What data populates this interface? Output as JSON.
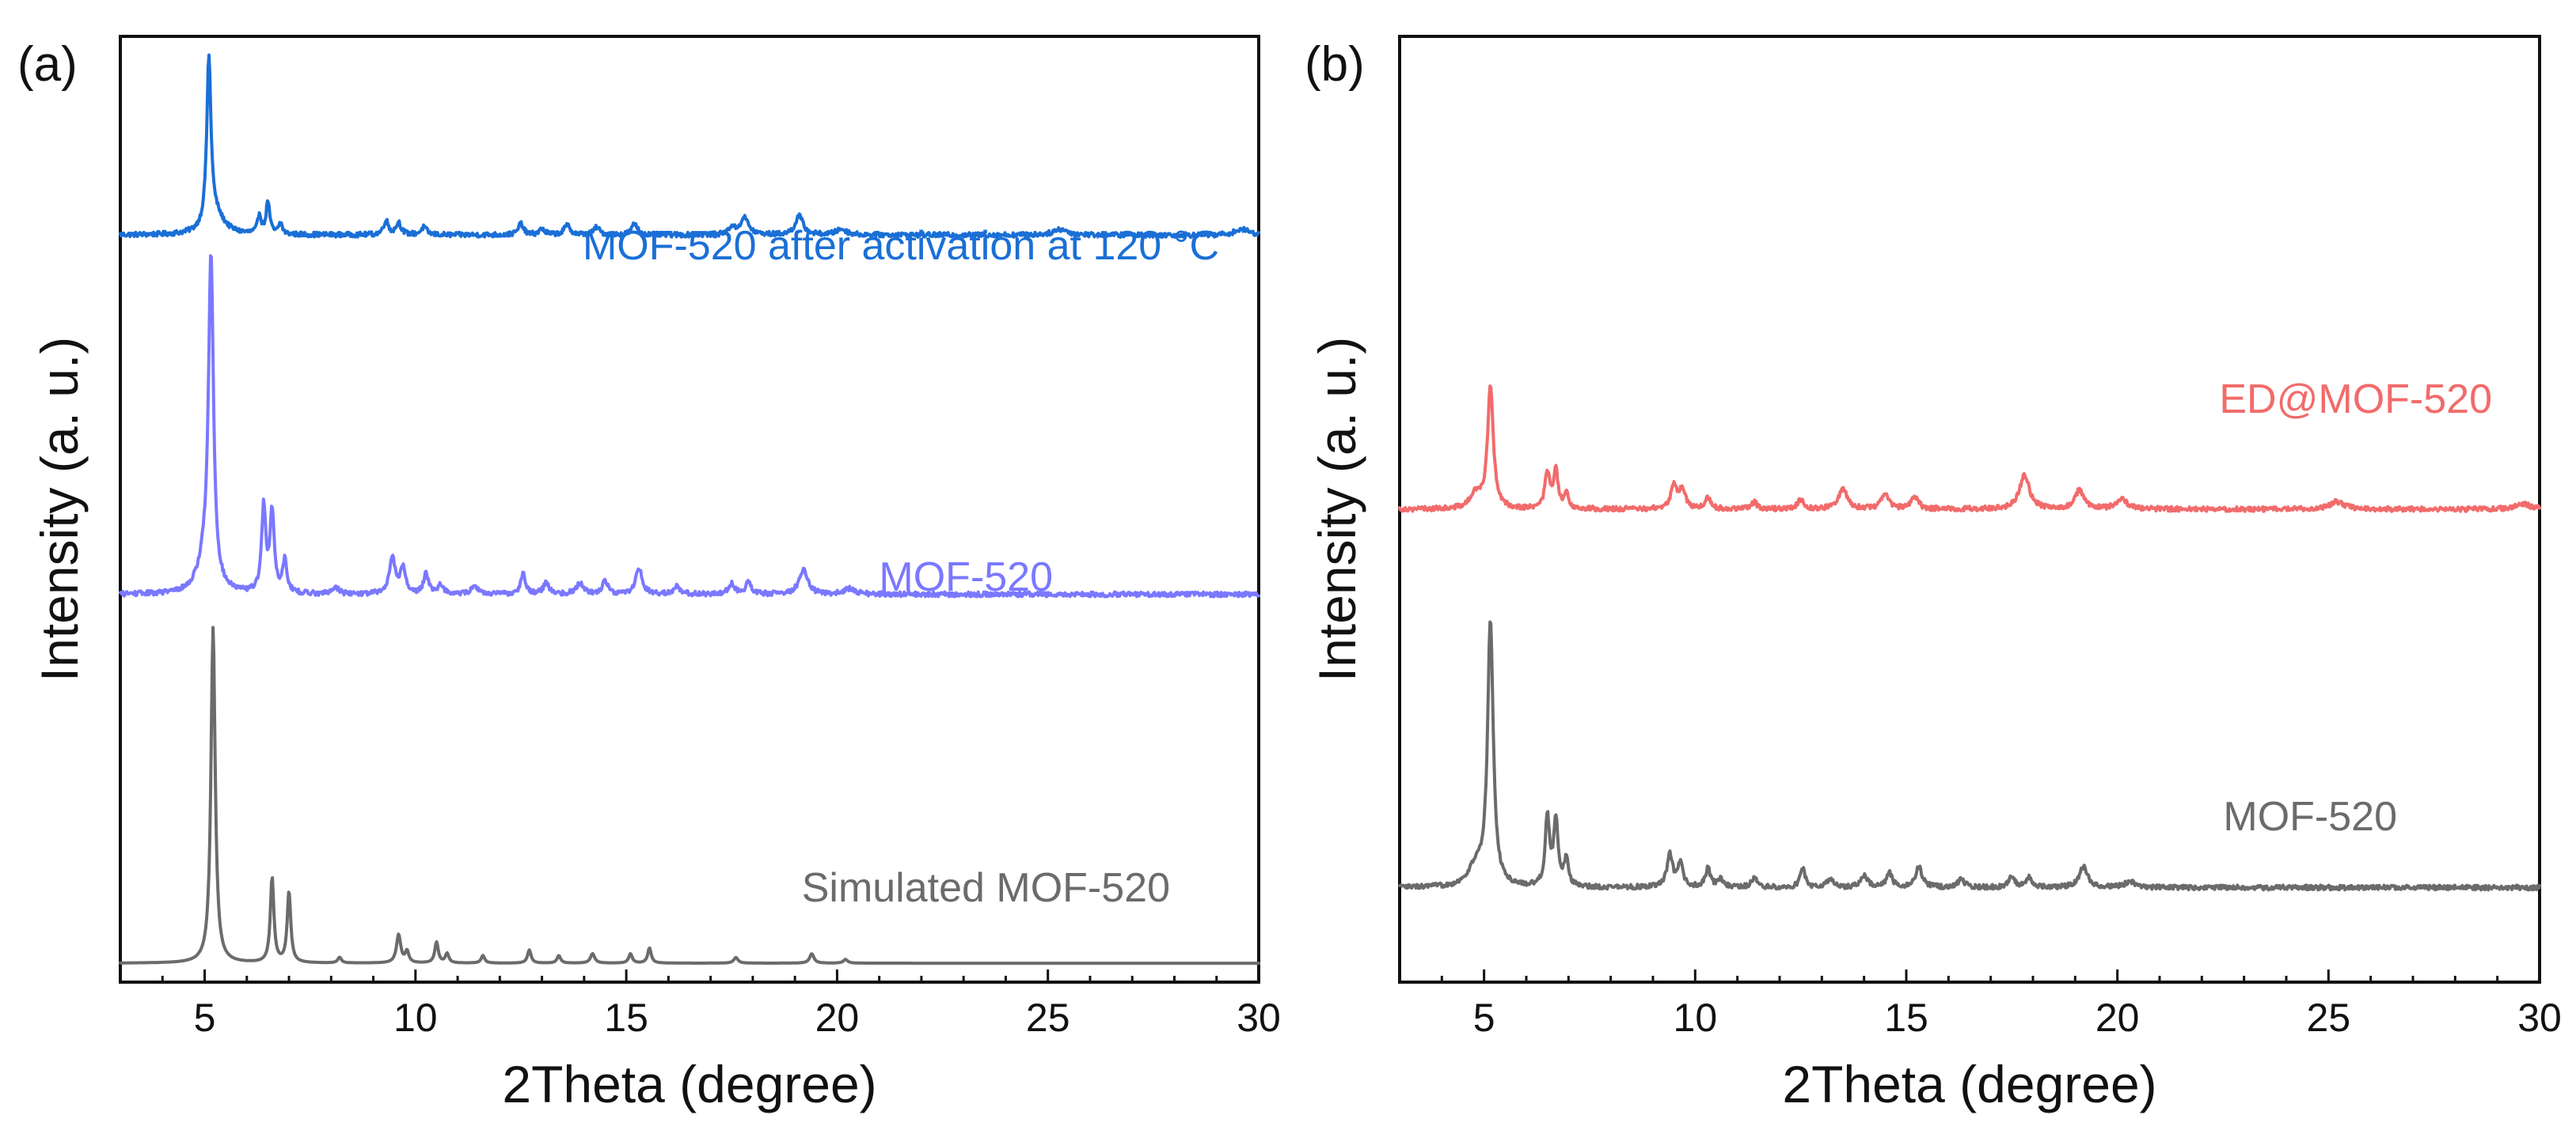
{
  "chart_data": [
    {
      "type": "line",
      "panel_label": "(a)",
      "xlabel": "2Theta (degree)",
      "ylabel": "Intensity (a. u.)",
      "xlim": [
        3,
        30
      ],
      "xticks": [
        5,
        10,
        15,
        20,
        25,
        30
      ],
      "y_ticks_shown": false,
      "series": [
        {
          "name": "MOF-520 after activation at 120 °C",
          "color": "#1a6fd6",
          "baseline": 0.79,
          "noise": 0.0025,
          "peaks": [
            [
              5.1,
              0.175,
              0.06
            ],
            [
              5.25,
              0.02,
              0.25
            ],
            [
              6.3,
              0.02,
              0.05
            ],
            [
              6.5,
              0.035,
              0.05
            ],
            [
              6.8,
              0.012,
              0.05
            ],
            [
              9.3,
              0.015,
              0.07
            ],
            [
              9.6,
              0.013,
              0.07
            ],
            [
              10.2,
              0.008,
              0.08
            ],
            [
              12.5,
              0.012,
              0.07
            ],
            [
              13.0,
              0.006,
              0.08
            ],
            [
              13.6,
              0.01,
              0.09
            ],
            [
              14.3,
              0.008,
              0.08
            ],
            [
              15.2,
              0.012,
              0.08
            ],
            [
              17.5,
              0.008,
              0.08
            ],
            [
              17.8,
              0.018,
              0.12
            ],
            [
              19.1,
              0.02,
              0.11
            ],
            [
              20.1,
              0.006,
              0.15
            ],
            [
              25.3,
              0.006,
              0.2
            ],
            [
              29.6,
              0.006,
              0.2
            ]
          ]
        },
        {
          "name": "MOF-520",
          "color": "#7a78ff",
          "baseline": 0.41,
          "noise": 0.0025,
          "peaks": [
            [
              5.15,
              0.345,
              0.07
            ],
            [
              5.0,
              0.03,
              0.2
            ],
            [
              6.4,
              0.09,
              0.06
            ],
            [
              6.6,
              0.085,
              0.06
            ],
            [
              6.9,
              0.035,
              0.06
            ],
            [
              8.1,
              0.008,
              0.08
            ],
            [
              9.45,
              0.04,
              0.08
            ],
            [
              9.7,
              0.028,
              0.07
            ],
            [
              10.25,
              0.022,
              0.07
            ],
            [
              10.6,
              0.01,
              0.08
            ],
            [
              11.4,
              0.01,
              0.08
            ],
            [
              12.55,
              0.022,
              0.07
            ],
            [
              13.1,
              0.012,
              0.08
            ],
            [
              13.9,
              0.012,
              0.1
            ],
            [
              14.5,
              0.014,
              0.08
            ],
            [
              15.3,
              0.028,
              0.09
            ],
            [
              16.2,
              0.008,
              0.1
            ],
            [
              17.5,
              0.012,
              0.08
            ],
            [
              17.9,
              0.012,
              0.09
            ],
            [
              19.2,
              0.026,
              0.12
            ],
            [
              20.3,
              0.006,
              0.15
            ]
          ]
        },
        {
          "name": "Simulated MOF-520",
          "color": "#6b6b6b",
          "baseline": 0.02,
          "noise": 0.0,
          "peaks": [
            [
              5.2,
              0.355,
              0.06
            ],
            [
              6.6,
              0.09,
              0.05
            ],
            [
              7.0,
              0.075,
              0.05
            ],
            [
              8.2,
              0.006,
              0.05
            ],
            [
              9.6,
              0.03,
              0.06
            ],
            [
              9.8,
              0.012,
              0.05
            ],
            [
              10.5,
              0.022,
              0.05
            ],
            [
              10.75,
              0.01,
              0.05
            ],
            [
              11.6,
              0.008,
              0.05
            ],
            [
              12.7,
              0.014,
              0.05
            ],
            [
              13.4,
              0.008,
              0.05
            ],
            [
              14.2,
              0.01,
              0.06
            ],
            [
              15.1,
              0.01,
              0.05
            ],
            [
              15.55,
              0.016,
              0.05
            ],
            [
              17.6,
              0.006,
              0.06
            ],
            [
              19.4,
              0.01,
              0.06
            ],
            [
              20.2,
              0.004,
              0.06
            ]
          ]
        }
      ]
    },
    {
      "type": "line",
      "panel_label": "(b)",
      "xlabel": "2Theta (degree)",
      "ylabel": "Intensity (a. u.)",
      "xlim": [
        3,
        30
      ],
      "xticks": [
        5,
        10,
        15,
        20,
        25,
        30
      ],
      "y_ticks_shown": false,
      "series": [
        {
          "name": "ED@MOF-520",
          "color": "#f26b6b",
          "baseline": 0.5,
          "noise": 0.0025,
          "peaks": [
            [
              5.15,
              0.13,
              0.08
            ],
            [
              4.8,
              0.015,
              0.15
            ],
            [
              6.5,
              0.038,
              0.07
            ],
            [
              6.7,
              0.04,
              0.06
            ],
            [
              6.95,
              0.015,
              0.06
            ],
            [
              9.5,
              0.025,
              0.09
            ],
            [
              9.7,
              0.02,
              0.08
            ],
            [
              10.3,
              0.012,
              0.08
            ],
            [
              11.4,
              0.007,
              0.09
            ],
            [
              12.5,
              0.01,
              0.09
            ],
            [
              13.5,
              0.022,
              0.12
            ],
            [
              14.5,
              0.018,
              0.1
            ],
            [
              15.2,
              0.013,
              0.1
            ],
            [
              17.8,
              0.036,
              0.14
            ],
            [
              19.1,
              0.02,
              0.12
            ],
            [
              20.1,
              0.01,
              0.16
            ],
            [
              25.2,
              0.008,
              0.2
            ],
            [
              29.6,
              0.006,
              0.2
            ]
          ]
        },
        {
          "name": "MOF-520",
          "color": "#6b6b6b",
          "baseline": 0.1,
          "noise": 0.0025,
          "peaks": [
            [
              5.15,
              0.28,
              0.08
            ],
            [
              4.8,
              0.02,
              0.2
            ],
            [
              6.5,
              0.075,
              0.06
            ],
            [
              6.7,
              0.07,
              0.06
            ],
            [
              6.95,
              0.03,
              0.06
            ],
            [
              9.4,
              0.035,
              0.08
            ],
            [
              9.65,
              0.025,
              0.07
            ],
            [
              10.3,
              0.02,
              0.07
            ],
            [
              10.6,
              0.008,
              0.08
            ],
            [
              11.4,
              0.01,
              0.08
            ],
            [
              12.55,
              0.02,
              0.07
            ],
            [
              13.2,
              0.01,
              0.08
            ],
            [
              14.0,
              0.012,
              0.1
            ],
            [
              14.6,
              0.015,
              0.08
            ],
            [
              15.3,
              0.022,
              0.09
            ],
            [
              16.3,
              0.008,
              0.1
            ],
            [
              17.5,
              0.012,
              0.08
            ],
            [
              17.9,
              0.01,
              0.09
            ],
            [
              19.2,
              0.022,
              0.12
            ],
            [
              20.3,
              0.006,
              0.15
            ]
          ]
        }
      ]
    }
  ]
}
